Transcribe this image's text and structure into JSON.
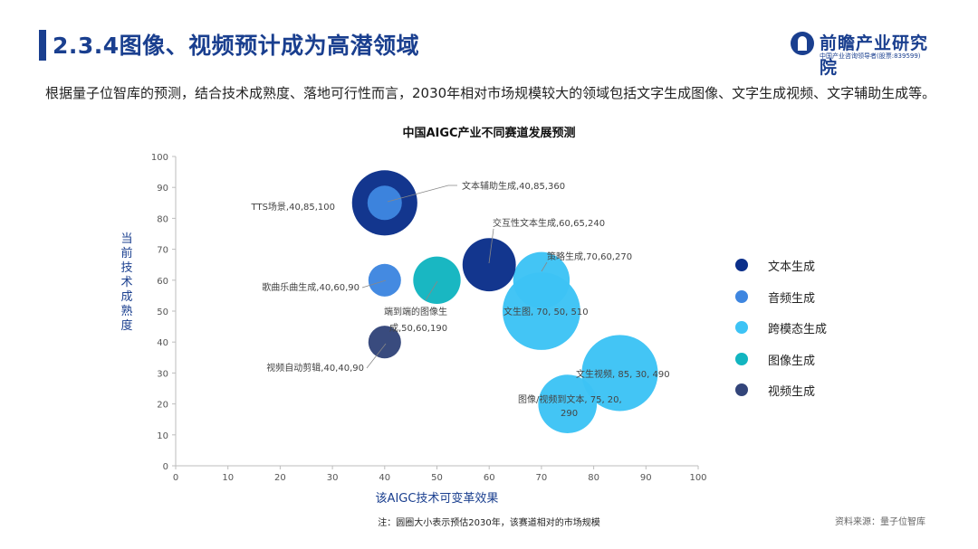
{
  "header": {
    "title": "2.3.4图像、视频预计成为高潜领域",
    "logo_name": "前瞻产业研究院",
    "logo_sub": "中国产业咨询领导者(股票:839599)"
  },
  "intro_text": "根据量子位智库的预测，结合技术成熟度、落地可行性而言，2030年相对市场规模较大的领域包括文字生成图像、文字生成视频、文字辅助生成等。",
  "chart_data": {
    "type": "bubble",
    "title": "中国AIGC产业不同赛道发展预测",
    "xlabel": "该AIGC技术可变革效果",
    "ylabel": "当前技术成熟度",
    "xlim": [
      0,
      100
    ],
    "ylim": [
      0,
      100
    ],
    "xticks": [
      0,
      10,
      20,
      30,
      40,
      50,
      60,
      70,
      80,
      90,
      100
    ],
    "yticks": [
      0,
      10,
      20,
      30,
      40,
      50,
      60,
      70,
      80,
      90,
      100
    ],
    "grid": false,
    "legend_position": "right",
    "categories": [
      {
        "name": "文本生成",
        "color": "#0b2f8a"
      },
      {
        "name": "音频生成",
        "color": "#3e86e0"
      },
      {
        "name": "跨模态生成",
        "color": "#3dc3f5"
      },
      {
        "name": "图像生成",
        "color": "#12b5c0"
      },
      {
        "name": "视频生成",
        "color": "#33457a"
      }
    ],
    "points": [
      {
        "label": "文本辅助生成,40,85,360",
        "category": "文本生成",
        "x": 40,
        "y": 85,
        "size": 360
      },
      {
        "label": "TTS场景,40,85,100",
        "category": "音频生成",
        "x": 40,
        "y": 85,
        "size": 100
      },
      {
        "label": "交互性文本生成,60,65,240",
        "category": "文本生成",
        "x": 60,
        "y": 65,
        "size": 240
      },
      {
        "label": "歌曲乐曲生成,40,60,90",
        "category": "音频生成",
        "x": 40,
        "y": 60,
        "size": 90
      },
      {
        "label": "端到端的图像生成,50,60,190",
        "category": "图像生成",
        "x": 50,
        "y": 60,
        "size": 190
      },
      {
        "label": "策略生成,70,60,270",
        "category": "跨模态生成",
        "x": 70,
        "y": 60,
        "size": 270
      },
      {
        "label": "文生图, 70, 50, 510",
        "category": "跨模态生成",
        "x": 70,
        "y": 50,
        "size": 510
      },
      {
        "label": "视频自动剪辑,40,40,90",
        "category": "视频生成",
        "x": 40,
        "y": 40,
        "size": 90
      },
      {
        "label": "文生视频, 85, 30, 490",
        "category": "跨模态生成",
        "x": 85,
        "y": 30,
        "size": 490
      },
      {
        "label": "图像/视频到文本, 75, 20, 290",
        "category": "跨模态生成",
        "x": 75,
        "y": 20,
        "size": 290
      }
    ]
  },
  "footnote": "注：圆圈大小表示预估2030年，该赛道相对的市场规模",
  "source": "资料来源：量子位智库"
}
